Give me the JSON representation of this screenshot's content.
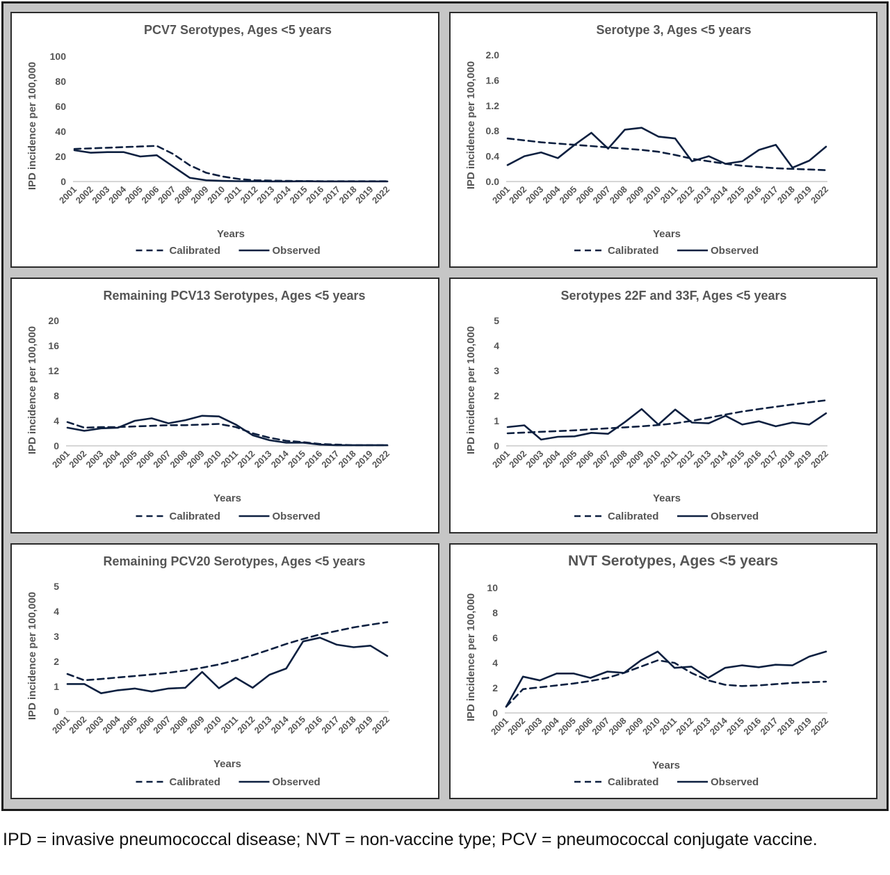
{
  "caption": "IPD = invasive pneumococcal disease; NVT = non-vaccine type; PCV = pneumococcal conjugate vaccine.",
  "colors": {
    "line": "#0d2040",
    "frame": "#c6c6c6",
    "text": "#404040"
  },
  "chart_data": [
    {
      "type": "line",
      "title": "PCV7 Serotypes, Ages <5 years",
      "xlabel": "Years",
      "ylabel": "IPD incidence per 100,000",
      "ylim": [
        0,
        100
      ],
      "yticks": [
        "0",
        "20",
        "40",
        "60",
        "80",
        "100"
      ],
      "categories": [
        "2001",
        "2002",
        "2003",
        "2004",
        "2005",
        "2006",
        "2007",
        "2008",
        "2009",
        "2010",
        "2011",
        "2012",
        "2013",
        "2014",
        "2015",
        "2016",
        "2017",
        "2018",
        "2019",
        "2022"
      ],
      "legend_position": "bottom",
      "series": [
        {
          "name": "Calibrated",
          "style": "dashed",
          "values": [
            26,
            26.5,
            27,
            27.5,
            28,
            28.5,
            22,
            13,
            7,
            4,
            2,
            1,
            0.7,
            0.5,
            0.4,
            0.3,
            0.3,
            0.2,
            0.2,
            0.2
          ]
        },
        {
          "name": "Observed",
          "style": "solid",
          "values": [
            25,
            23,
            23.5,
            23.5,
            20,
            21,
            12,
            3,
            1,
            0.5,
            0.3,
            0.2,
            0.1,
            0.1,
            0.2,
            0.1,
            0.1,
            0.1,
            0.1,
            0.1
          ]
        }
      ]
    },
    {
      "type": "line",
      "title": "Serotype 3, Ages <5 years",
      "xlabel": "Years",
      "ylabel": "IPD incidence per 100,000",
      "ylim": [
        0,
        2.0
      ],
      "yticks": [
        "0.0",
        "0.4",
        "0.8",
        "1.2",
        "1.6",
        "2.0"
      ],
      "categories": [
        "2001",
        "2002",
        "2003",
        "2004",
        "2005",
        "2006",
        "2007",
        "2008",
        "2009",
        "2010",
        "2011",
        "2012",
        "2013",
        "2014",
        "2015",
        "2016",
        "2017",
        "2018",
        "2019",
        "2022"
      ],
      "legend_position": "bottom",
      "series": [
        {
          "name": "Calibrated",
          "style": "dashed",
          "values": [
            0.68,
            0.65,
            0.62,
            0.6,
            0.58,
            0.56,
            0.54,
            0.52,
            0.5,
            0.47,
            0.42,
            0.36,
            0.32,
            0.28,
            0.25,
            0.23,
            0.21,
            0.2,
            0.19,
            0.18
          ]
        },
        {
          "name": "Observed",
          "style": "solid",
          "values": [
            0.26,
            0.4,
            0.46,
            0.37,
            0.58,
            0.77,
            0.52,
            0.82,
            0.85,
            0.71,
            0.68,
            0.32,
            0.4,
            0.28,
            0.32,
            0.5,
            0.58,
            0.22,
            0.33,
            0.55
          ]
        }
      ]
    },
    {
      "type": "line",
      "title": "Remaining PCV13 Serotypes, Ages <5 years",
      "xlabel": "Years",
      "ylabel": "IPD incidence per 100,000",
      "ylim": [
        0,
        20
      ],
      "yticks": [
        "0",
        "4",
        "8",
        "12",
        "16",
        "20"
      ],
      "categories": [
        "2001",
        "2002",
        "2003",
        "2004",
        "2005",
        "2006",
        "2007",
        "2008",
        "2009",
        "2010",
        "2011",
        "2012",
        "2013",
        "2014",
        "2015",
        "2016",
        "2017",
        "2018",
        "2019",
        "2022"
      ],
      "legend_position": "bottom",
      "series": [
        {
          "name": "Calibrated",
          "style": "dashed",
          "values": [
            3.8,
            2.9,
            3.0,
            3.0,
            3.1,
            3.2,
            3.3,
            3.3,
            3.4,
            3.5,
            3.0,
            2.0,
            1.3,
            0.8,
            0.6,
            0.3,
            0.2,
            0.1,
            0.1,
            0.1
          ]
        },
        {
          "name": "Observed",
          "style": "solid",
          "values": [
            2.9,
            2.4,
            2.8,
            2.9,
            4.0,
            4.4,
            3.6,
            4.1,
            4.8,
            4.7,
            3.4,
            1.7,
            0.9,
            0.5,
            0.5,
            0.2,
            0.1,
            0.1,
            0.1,
            0.1
          ]
        }
      ]
    },
    {
      "type": "line",
      "title": "Serotypes 22F and 33F, Ages <5 years",
      "xlabel": "Years",
      "ylabel": "IPD incidence per 100,000",
      "ylim": [
        0,
        5
      ],
      "yticks": [
        "0",
        "1",
        "2",
        "3",
        "4",
        "5"
      ],
      "categories": [
        "2001",
        "2002",
        "2003",
        "2004",
        "2005",
        "2006",
        "2007",
        "2008",
        "2009",
        "2010",
        "2011",
        "2012",
        "2013",
        "2014",
        "2015",
        "2016",
        "2017",
        "2018",
        "2019",
        "2022"
      ],
      "legend_position": "bottom",
      "series": [
        {
          "name": "Calibrated",
          "style": "dashed",
          "values": [
            0.5,
            0.53,
            0.56,
            0.59,
            0.62,
            0.66,
            0.7,
            0.74,
            0.78,
            0.83,
            0.9,
            1.0,
            1.12,
            1.25,
            1.37,
            1.47,
            1.56,
            1.65,
            1.74,
            1.82
          ]
        },
        {
          "name": "Observed",
          "style": "solid",
          "values": [
            0.75,
            0.82,
            0.25,
            0.36,
            0.38,
            0.52,
            0.48,
            0.95,
            1.47,
            0.85,
            1.45,
            0.93,
            0.9,
            1.2,
            0.85,
            0.98,
            0.78,
            0.93,
            0.85,
            1.3
          ]
        }
      ]
    },
    {
      "type": "line",
      "title": "Remaining PCV20 Serotypes, Ages <5 years",
      "xlabel": "Years",
      "ylabel": "IPD incidence per 100,000",
      "ylim": [
        0,
        5
      ],
      "yticks": [
        "0",
        "1",
        "2",
        "3",
        "4",
        "5"
      ],
      "categories": [
        "2001",
        "2002",
        "2003",
        "2004",
        "2005",
        "2006",
        "2007",
        "2008",
        "2009",
        "2010",
        "2011",
        "2012",
        "2013",
        "2014",
        "2015",
        "2016",
        "2017",
        "2018",
        "2019",
        "2022"
      ],
      "legend_position": "bottom",
      "series": [
        {
          "name": "Calibrated",
          "style": "dashed",
          "values": [
            1.5,
            1.25,
            1.3,
            1.36,
            1.42,
            1.48,
            1.55,
            1.64,
            1.75,
            1.88,
            2.05,
            2.25,
            2.47,
            2.7,
            2.9,
            3.08,
            3.22,
            3.36,
            3.47,
            3.57
          ]
        },
        {
          "name": "Observed",
          "style": "solid",
          "values": [
            1.1,
            1.1,
            0.73,
            0.85,
            0.92,
            0.8,
            0.92,
            0.95,
            1.58,
            0.93,
            1.35,
            0.95,
            1.47,
            1.72,
            2.8,
            2.95,
            2.67,
            2.57,
            2.63,
            2.22
          ]
        }
      ]
    },
    {
      "type": "line",
      "title": "NVT Serotypes, Ages <5 years",
      "xlabel": "Years",
      "ylabel": "IPD incidence per 100,000",
      "ylim": [
        0,
        10
      ],
      "yticks": [
        "0",
        "2",
        "4",
        "6",
        "8",
        "10"
      ],
      "categories": [
        "2001",
        "2002",
        "2003",
        "2004",
        "2005",
        "2006",
        "2007",
        "2008",
        "2009",
        "2010",
        "2011",
        "2012",
        "2013",
        "2014",
        "2015",
        "2016",
        "2017",
        "2018",
        "2019",
        "2022"
      ],
      "legend_position": "bottom",
      "series": [
        {
          "name": "Calibrated",
          "style": "dashed",
          "values": [
            0.5,
            1.9,
            2.05,
            2.2,
            2.35,
            2.55,
            2.8,
            3.2,
            3.7,
            4.2,
            4.0,
            3.2,
            2.6,
            2.25,
            2.15,
            2.2,
            2.3,
            2.4,
            2.45,
            2.5
          ]
        },
        {
          "name": "Observed",
          "style": "solid",
          "values": [
            0.5,
            2.9,
            2.6,
            3.15,
            3.15,
            2.8,
            3.3,
            3.2,
            4.2,
            4.9,
            3.6,
            3.7,
            2.8,
            3.6,
            3.8,
            3.65,
            3.85,
            3.8,
            4.5,
            4.9
          ]
        }
      ]
    }
  ]
}
